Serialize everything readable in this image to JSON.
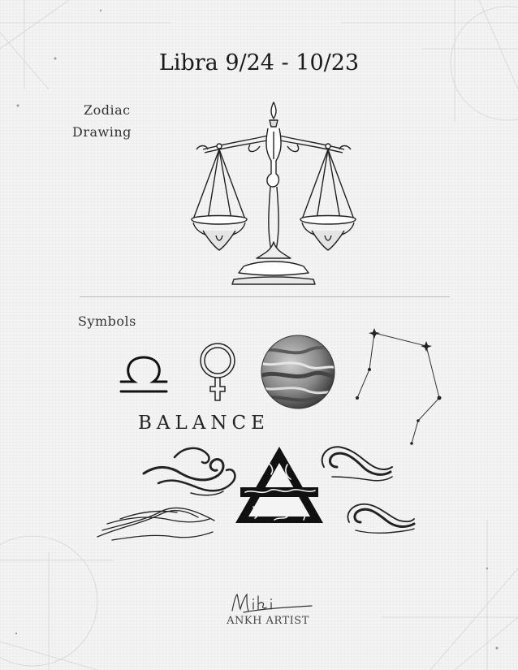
{
  "page": {
    "title": "Libra 9/24 - 10/23",
    "zodiac_label_line1": "Zodiac",
    "zodiac_label_line2": "Drawing",
    "symbols_label": "Symbols",
    "balance_word": "BALANCE",
    "artist_name": "ANKH ARTIST",
    "signature": "Miki"
  },
  "icons": [
    "libra-scales-icon",
    "libra-glyph-icon",
    "venus-symbol-icon",
    "venus-planet-icon",
    "libra-constellation-icon",
    "air-wave-icon",
    "air-triangle-icon"
  ],
  "colors": {
    "background": "#f4f4f4",
    "ink": "#1a1a1a",
    "guide_lines": "#cfcfcf"
  }
}
